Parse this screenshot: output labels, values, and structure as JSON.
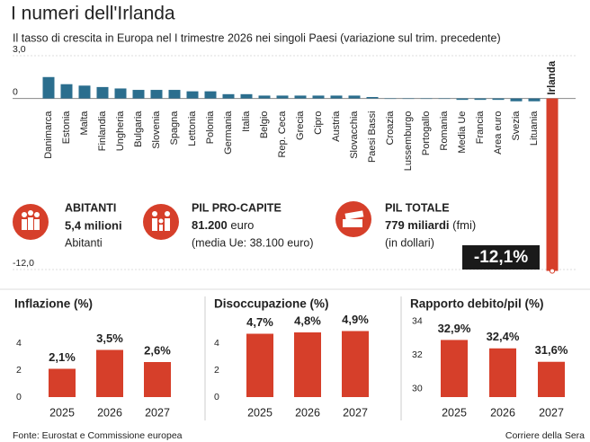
{
  "header": {
    "title": "I numeri dell'Irlanda",
    "subtitle": "Il tasso di crescita in Europa nel I trimestre 2026 nei singoli Paesi (variazione sul trim. precedente)"
  },
  "stats": [
    {
      "label": "ABITANTI",
      "value": "5,4 milioni",
      "unit": "",
      "note": "Abitanti"
    },
    {
      "label": "PIL PRO-CAPITE",
      "value": "81.200",
      "unit": "euro",
      "note": "(media Ue: 38.100 euro)"
    },
    {
      "label": "PIL TOTALE",
      "value": "779 miliardi",
      "unit": "(fmi)",
      "note": "(in dollari)"
    }
  ],
  "chart_data": [
    {
      "type": "bar",
      "categories": [
        "Danimarca",
        "Estonia",
        "Malta",
        "Finlandia",
        "Ungheria",
        "Bulgaria",
        "Slovenia",
        "Spagna",
        "Lettonia",
        "Polonia",
        "Germania",
        "Italia",
        "Belgio",
        "Rep. Ceca",
        "Grecia",
        "Cipro",
        "Austria",
        "Slovacchia",
        "Paesi Bassi",
        "Croazia",
        "Lussemburgo",
        "Portogallo",
        "Romania",
        "Media Ue",
        "Francia",
        "Area euro",
        "Svezia",
        "Lituania",
        "Irlanda"
      ],
      "values": [
        1.5,
        1.0,
        0.9,
        0.8,
        0.7,
        0.6,
        0.6,
        0.6,
        0.5,
        0.5,
        0.3,
        0.3,
        0.2,
        0.2,
        0.2,
        0.2,
        0.2,
        0.2,
        0.1,
        0,
        0,
        0,
        0,
        -0.1,
        -0.1,
        -0.1,
        -0.2,
        -0.2,
        -12.1
      ],
      "value_labels": [
        null,
        null,
        null,
        null,
        null,
        null,
        null,
        null,
        null,
        null,
        null,
        null,
        null,
        null,
        null,
        null,
        null,
        null,
        null,
        null,
        null,
        null,
        null,
        null,
        null,
        null,
        null,
        null,
        "-12,1%"
      ],
      "color": "#2b6e8e",
      "highlight_color": "#d63f2a",
      "ylim": [
        -12.6,
        3.2
      ],
      "yticks": [
        {
          "value": 3,
          "label": "3,0"
        },
        0,
        {
          "value": -12,
          "label": "-12,0"
        }
      ]
    },
    {
      "type": "bar",
      "title": "Inflazione (%)",
      "categories": [
        "2025",
        "2026",
        "2027"
      ],
      "values": [
        2.1,
        3.5,
        2.6
      ],
      "value_labels": [
        "2,1%",
        "3,5%",
        "2,6%"
      ],
      "color": "#d63f2a",
      "ylim": [
        0,
        4.5
      ],
      "yticks": [
        0,
        2,
        4
      ]
    },
    {
      "type": "bar",
      "title": "Disoccupazione (%)",
      "categories": [
        "2025",
        "2026",
        "2027"
      ],
      "values": [
        4.7,
        4.8,
        4.9
      ],
      "value_labels": [
        "4,7%",
        "4,8%",
        "4,9%"
      ],
      "color": "#d63f2a",
      "ylim": [
        0,
        5.5
      ],
      "yticks": [
        0,
        2,
        4
      ]
    },
    {
      "type": "bar",
      "title": "Rapporto debito/pil (%)",
      "categories": [
        "2025",
        "2026",
        "2027"
      ],
      "values": [
        32.9,
        32.4,
        31.6
      ],
      "value_labels": [
        "32,9%",
        "32,4%",
        "31,6%"
      ],
      "color": "#d63f2a",
      "ylim": [
        29.5,
        34
      ],
      "yticks": [
        30,
        32,
        34
      ]
    }
  ],
  "footer": {
    "source": "Fonte: Eurostat e Commissione europea",
    "credit": "Corriere della Sera"
  }
}
